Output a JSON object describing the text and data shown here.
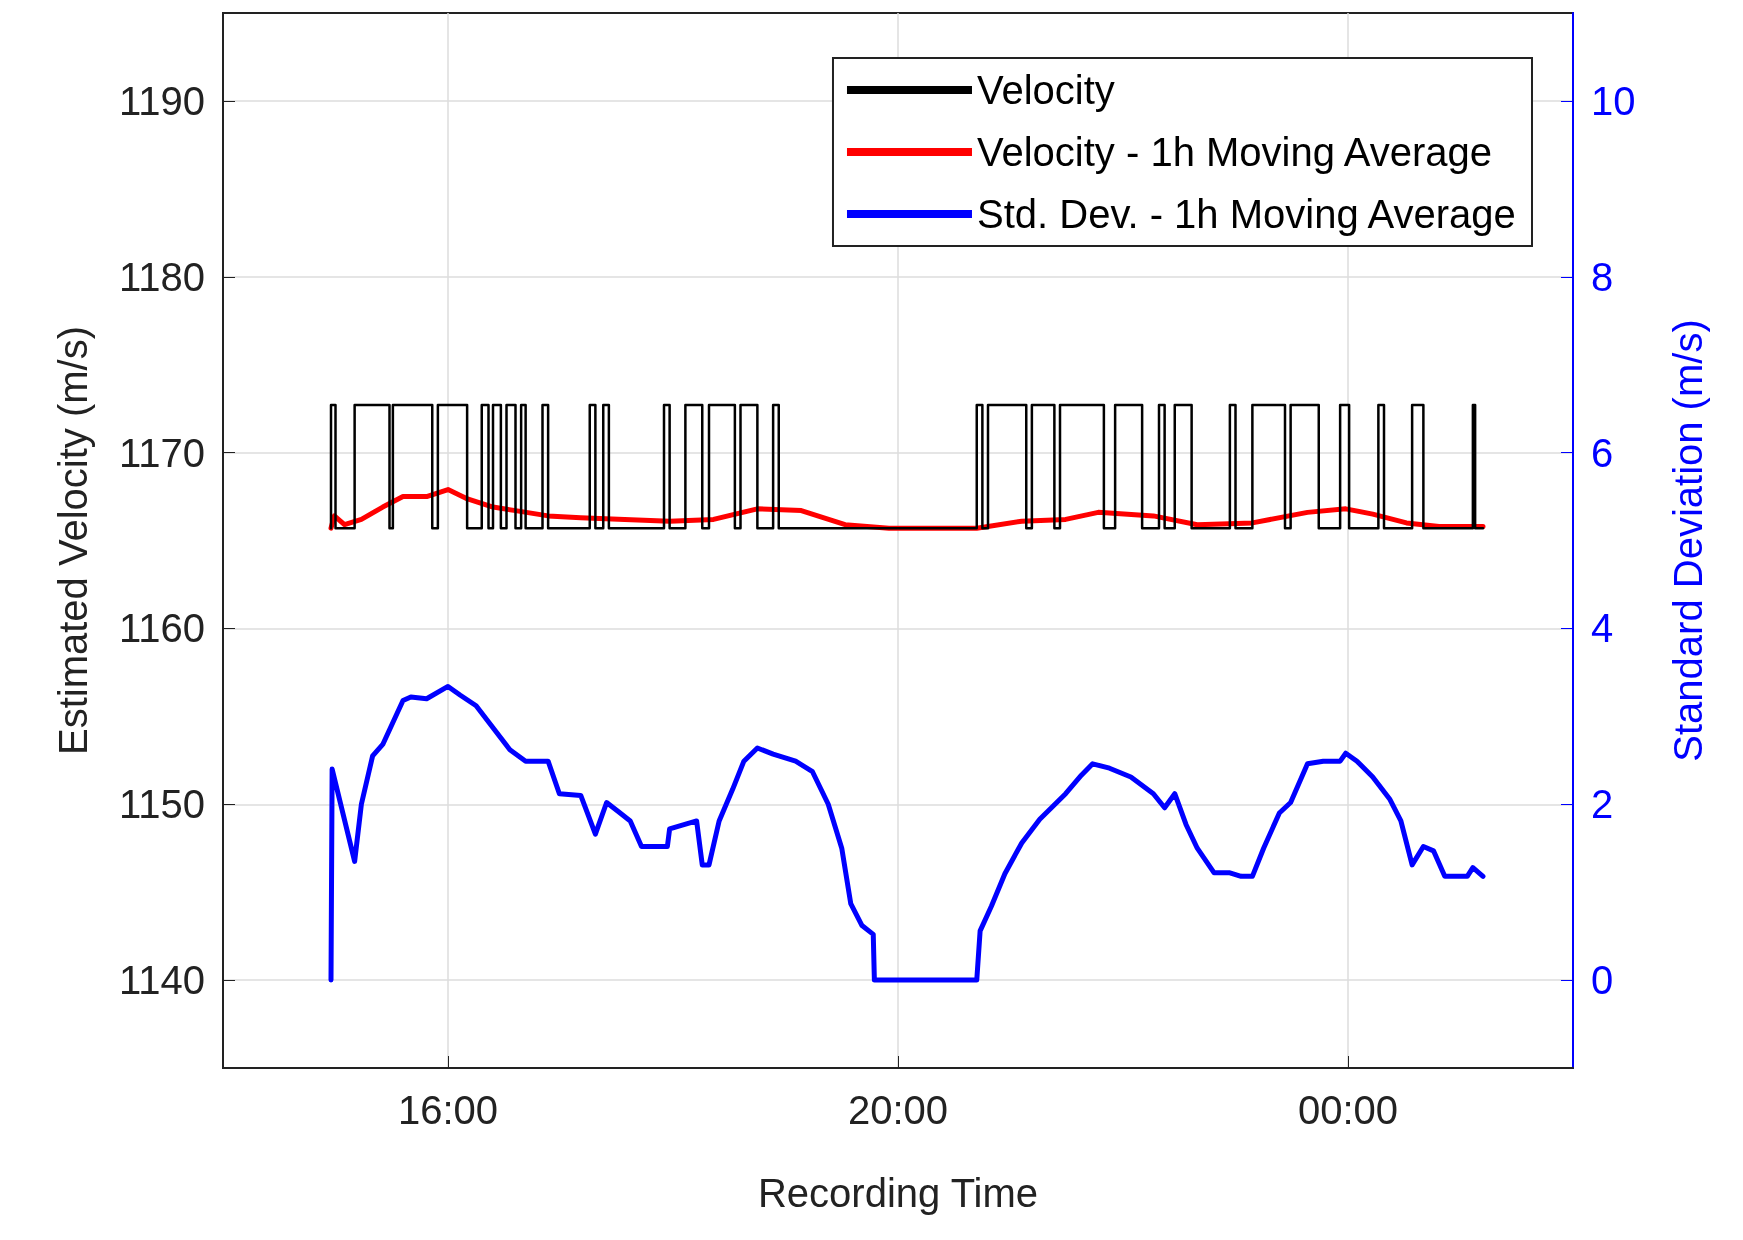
{
  "chart_data": {
    "type": "line",
    "xlabel": "Recording Time",
    "ylabel": "Estimated Velocity (m/s)",
    "y2label": "Standard Deviation (m/s)",
    "xlim": [
      14,
      26
    ],
    "xticks": [
      {
        "value": 16,
        "label": "16:00"
      },
      {
        "value": 20,
        "label": "20:00"
      },
      {
        "value": 24,
        "label": "00:00"
      }
    ],
    "ylim": [
      1135,
      1195
    ],
    "yticks": [
      1140,
      1150,
      1160,
      1170,
      1180,
      1190
    ],
    "y2lim": [
      -1,
      11
    ],
    "y2ticks": [
      0,
      2,
      4,
      6,
      8,
      10
    ],
    "grid": true,
    "legend": "top right",
    "marker": "none",
    "line_style": "solid",
    "series": [
      {
        "name": "Velocity",
        "color": "#000000",
        "x": [
          14.96,
          14.96,
          15.0,
          15.0,
          15.17,
          15.17,
          15.48,
          15.48,
          15.51,
          15.51,
          15.86,
          15.86,
          15.91,
          15.91,
          16.17,
          16.17,
          16.3,
          16.3,
          16.36,
          16.36,
          16.4,
          16.4,
          16.47,
          16.47,
          16.52,
          16.52,
          16.6,
          16.6,
          16.65,
          16.65,
          16.69,
          16.69,
          16.84,
          16.84,
          16.89,
          16.89,
          17.26,
          17.26,
          17.31,
          17.31,
          17.38,
          17.38,
          17.43,
          17.43,
          17.92,
          17.92,
          17.97,
          17.97,
          18.11,
          18.11,
          18.26,
          18.26,
          18.32,
          18.32,
          18.55,
          18.55,
          18.6,
          18.6,
          18.75,
          18.75,
          18.89,
          18.89,
          18.94,
          18.94,
          20.7,
          20.7,
          20.75,
          20.75,
          20.8,
          20.8,
          21.14,
          21.14,
          21.19,
          21.19,
          21.39,
          21.39,
          21.44,
          21.44,
          21.83,
          21.83,
          21.93,
          21.93,
          22.17,
          22.17,
          22.32,
          22.32,
          22.37,
          22.37,
          22.46,
          22.46,
          22.61,
          22.61,
          22.95,
          22.95,
          23.0,
          23.0,
          23.15,
          23.15,
          23.44,
          23.44,
          23.49,
          23.49,
          23.74,
          23.74,
          23.93,
          23.93,
          24.01,
          24.01,
          24.27,
          24.27,
          24.32,
          24.32,
          24.57,
          24.57,
          24.67,
          24.67,
          25.11,
          25.11,
          25.13,
          25.13,
          25.2
        ],
        "values": [
          1165.7,
          1172.7,
          1172.7,
          1165.7,
          1165.7,
          1172.7,
          1172.7,
          1165.7,
          1165.7,
          1172.7,
          1172.7,
          1165.7,
          1165.7,
          1172.7,
          1172.7,
          1165.7,
          1165.7,
          1172.7,
          1172.7,
          1165.7,
          1165.7,
          1172.7,
          1172.7,
          1165.7,
          1165.7,
          1172.7,
          1172.7,
          1165.7,
          1165.7,
          1172.7,
          1172.7,
          1165.7,
          1165.7,
          1172.7,
          1172.7,
          1165.7,
          1165.7,
          1172.7,
          1172.7,
          1165.7,
          1165.7,
          1172.7,
          1172.7,
          1165.7,
          1165.7,
          1172.7,
          1172.7,
          1165.7,
          1165.7,
          1172.7,
          1172.7,
          1165.7,
          1165.7,
          1172.7,
          1172.7,
          1165.7,
          1165.7,
          1172.7,
          1172.7,
          1165.7,
          1165.7,
          1172.7,
          1172.7,
          1165.7,
          1165.7,
          1172.7,
          1172.7,
          1165.7,
          1165.7,
          1172.7,
          1172.7,
          1165.7,
          1165.7,
          1172.7,
          1172.7,
          1165.7,
          1165.7,
          1172.7,
          1172.7,
          1165.7,
          1165.7,
          1172.7,
          1172.7,
          1165.7,
          1165.7,
          1172.7,
          1172.7,
          1165.7,
          1165.7,
          1172.7,
          1172.7,
          1165.7,
          1165.7,
          1172.7,
          1172.7,
          1165.7,
          1165.7,
          1172.7,
          1172.7,
          1165.7,
          1165.7,
          1172.7,
          1172.7,
          1165.7,
          1165.7,
          1172.7,
          1172.7,
          1165.7,
          1165.7,
          1172.7,
          1172.7,
          1165.7,
          1165.7,
          1172.7,
          1172.7,
          1165.7,
          1165.7,
          1172.7,
          1172.7,
          1165.7,
          1165.7
        ]
      },
      {
        "name": "Velocity - 1h Moving Average",
        "color": "#ff0000",
        "x": [
          14.96,
          14.99,
          15.08,
          15.23,
          15.42,
          15.6,
          15.81,
          16.0,
          16.16,
          16.4,
          16.6,
          16.89,
          17.18,
          17.57,
          17.97,
          18.36,
          18.75,
          19.14,
          19.53,
          19.92,
          20.7,
          21.1,
          21.49,
          21.78,
          22.27,
          22.66,
          23.15,
          23.64,
          23.98,
          24.22,
          24.52,
          24.81,
          25.2
        ],
        "values": [
          1165.7,
          1166.4,
          1165.9,
          1166.2,
          1166.9,
          1167.5,
          1167.5,
          1167.9,
          1167.4,
          1166.9,
          1166.7,
          1166.4,
          1166.3,
          1166.2,
          1166.1,
          1166.2,
          1166.8,
          1166.7,
          1165.9,
          1165.7,
          1165.7,
          1166.1,
          1166.2,
          1166.6,
          1166.4,
          1165.9,
          1166.0,
          1166.6,
          1166.8,
          1166.5,
          1166.0,
          1165.8,
          1165.8
        ]
      },
      {
        "name": "Std. Dev. - 1h Moving Average",
        "color": "#0000ff",
        "axis": "y2",
        "x": [
          14.96,
          14.97,
          15.17,
          15.23,
          15.33,
          15.42,
          15.6,
          15.67,
          15.81,
          16.0,
          16.11,
          16.25,
          16.4,
          16.55,
          16.69,
          16.89,
          16.99,
          17.18,
          17.31,
          17.41,
          17.53,
          17.62,
          17.72,
          17.95,
          17.97,
          18.21,
          18.26,
          18.32,
          18.41,
          18.53,
          18.63,
          18.75,
          18.89,
          19.09,
          19.24,
          19.38,
          19.5,
          19.58,
          19.68,
          19.78,
          19.79,
          20.7,
          20.73,
          20.83,
          20.95,
          21.1,
          21.26,
          21.49,
          21.63,
          21.73,
          21.88,
          22.07,
          22.27,
          22.37,
          22.46,
          22.56,
          22.66,
          22.81,
          22.95,
          23.05,
          23.15,
          23.25,
          23.39,
          23.49,
          23.64,
          23.78,
          23.93,
          23.98,
          24.08,
          24.22,
          24.37,
          24.47,
          24.57,
          24.67,
          24.76,
          24.86,
          25.06,
          25.11,
          25.2
        ],
        "values": [
          0,
          2.4,
          1.35,
          2.0,
          2.55,
          2.68,
          3.18,
          3.22,
          3.2,
          3.34,
          3.24,
          3.12,
          2.87,
          2.62,
          2.49,
          2.49,
          2.12,
          2.1,
          1.66,
          2.02,
          1.9,
          1.81,
          1.52,
          1.52,
          1.72,
          1.81,
          1.31,
          1.31,
          1.81,
          2.17,
          2.49,
          2.64,
          2.57,
          2.49,
          2.37,
          2.0,
          1.5,
          0.87,
          0.62,
          0.52,
          0,
          0,
          0.56,
          0.84,
          1.21,
          1.56,
          1.83,
          2.12,
          2.33,
          2.46,
          2.41,
          2.31,
          2.12,
          1.96,
          2.12,
          1.77,
          1.5,
          1.22,
          1.22,
          1.18,
          1.18,
          1.5,
          1.9,
          2.02,
          2.46,
          2.49,
          2.49,
          2.58,
          2.49,
          2.31,
          2.06,
          1.81,
          1.31,
          1.52,
          1.47,
          1.18,
          1.18,
          1.28,
          1.18
        ]
      }
    ]
  }
}
